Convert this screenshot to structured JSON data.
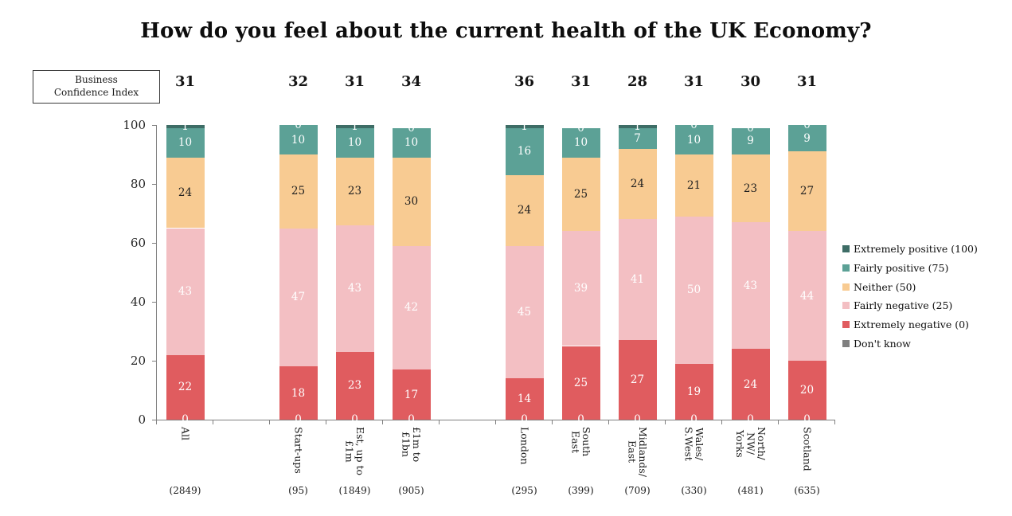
{
  "bci_box": {
    "line1": "Business",
    "line2": "Confidence Index"
  },
  "chart_data": {
    "type": "bar",
    "stacked": true,
    "title": "How do you feel about the current health of the UK Economy?",
    "ylim": [
      0,
      100
    ],
    "y_ticks": [
      0,
      20,
      40,
      60,
      80,
      100
    ],
    "grid": false,
    "legend_position": "right",
    "categories": [
      "All",
      "Start-ups",
      "Est, up to £1m",
      "£1m to £1bn",
      "London",
      "South East",
      "Midlands/East",
      "Wales/S.West",
      "North/NW/Yorks",
      "Scotland"
    ],
    "category_label_lines": [
      [
        "All"
      ],
      [
        "Start-ups"
      ],
      [
        "Est, up to",
        "£1m"
      ],
      [
        "£1m to",
        "£1bn"
      ],
      [
        "London"
      ],
      [
        "South",
        "East"
      ],
      [
        "Midlands/",
        "East"
      ],
      [
        "Wales/",
        "S.West"
      ],
      [
        "North/",
        "NW/",
        "Yorks"
      ],
      [
        "Scotland"
      ]
    ],
    "sample_sizes": [
      "(2849)",
      "(95)",
      "(1849)",
      "(905)",
      "(295)",
      "(399)",
      "(709)",
      "(330)",
      "(481)",
      "(635)"
    ],
    "business_confidence_index": [
      "31",
      "32",
      "31",
      "34",
      "36",
      "31",
      "28",
      "31",
      "30",
      "31"
    ],
    "slot_index": [
      0,
      2,
      3,
      4,
      6,
      7,
      8,
      9,
      10,
      11
    ],
    "n_slots": 12,
    "series": [
      {
        "name": "Extremely positive (100)",
        "color": "#3E6D66",
        "label_color": "#ffffff",
        "values": [
          1,
          0,
          1,
          0,
          1,
          0,
          1,
          0,
          0,
          0
        ]
      },
      {
        "name": "Fairly positive (75)",
        "color": "#5CA196",
        "label_color": "#ffffff",
        "values": [
          10,
          10,
          10,
          10,
          16,
          10,
          7,
          10,
          9,
          9
        ]
      },
      {
        "name": "Neither (50)",
        "color": "#F8CB92",
        "label_color": "#1f1f1f",
        "values": [
          24,
          25,
          23,
          30,
          24,
          25,
          24,
          21,
          23,
          27
        ]
      },
      {
        "name": "Fairly negative (25)",
        "color": "#F3BFC3",
        "label_color": "#ffffff",
        "values": [
          43,
          47,
          43,
          42,
          45,
          39,
          41,
          50,
          43,
          44
        ]
      },
      {
        "name": "Extremely negative (0)",
        "color": "#E05C5F",
        "label_color": "#ffffff",
        "values": [
          22,
          18,
          23,
          17,
          14,
          25,
          27,
          19,
          24,
          20
        ]
      },
      {
        "name": "Don't know",
        "color": "#7F7F7F",
        "label_color": "#ffffff",
        "values": [
          0,
          0,
          0,
          0,
          0,
          0,
          0,
          0,
          0,
          0
        ]
      }
    ]
  }
}
